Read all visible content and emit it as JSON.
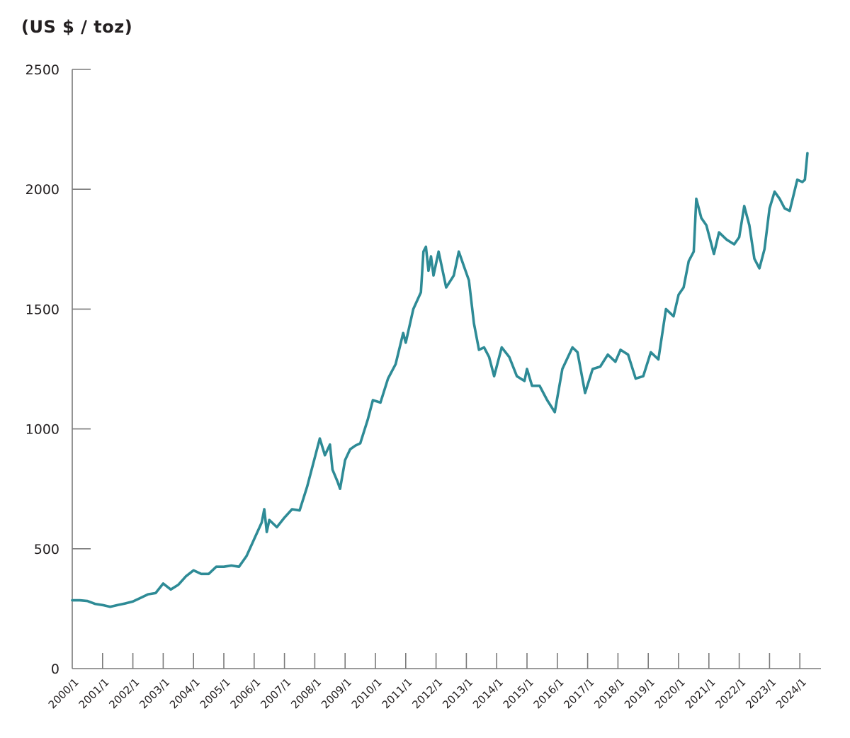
{
  "chart_data": {
    "type": "line",
    "title": "",
    "ylabel": "(US $ / toz)",
    "xlabel": "",
    "ylim": [
      0,
      2500
    ],
    "yticks": [
      0,
      500,
      1000,
      1500,
      2000,
      2500
    ],
    "xticks": [
      "2000/1",
      "2001/1",
      "2002/1",
      "2003/1",
      "2004/1",
      "2005/1",
      "2006/1",
      "2007/1",
      "2008/1",
      "2009/1",
      "2010/1",
      "2011/1",
      "2012/1",
      "2013/1",
      "2014/1",
      "2015/1",
      "2016/1",
      "2017/1",
      "2018/1",
      "2019/1",
      "2020/1",
      "2021/1",
      "2022/1",
      "2023/1",
      "2024/1"
    ],
    "xrange": [
      "2000-01",
      "2024-04"
    ],
    "grid": false,
    "line_color": "#2e8b96",
    "series": [
      {
        "x": [
          "2000-01",
          "2000-04",
          "2000-07",
          "2000-10",
          "2001-01",
          "2001-04",
          "2001-07",
          "2001-10",
          "2002-01",
          "2002-04",
          "2002-07",
          "2002-10",
          "2003-01",
          "2003-04",
          "2003-07",
          "2003-10",
          "2004-01",
          "2004-04",
          "2004-07",
          "2004-10",
          "2005-01",
          "2005-04",
          "2005-07",
          "2005-10",
          "2006-01",
          "2006-04",
          "2006-05",
          "2006-06",
          "2006-07",
          "2006-10",
          "2007-01",
          "2007-04",
          "2007-07",
          "2007-10",
          "2008-01",
          "2008-03",
          "2008-05",
          "2008-07",
          "2008-08",
          "2008-10",
          "2008-11",
          "2009-01",
          "2009-03",
          "2009-05",
          "2009-07",
          "2009-10",
          "2009-12",
          "2010-03",
          "2010-06",
          "2010-09",
          "2010-12",
          "2011-01",
          "2011-04",
          "2011-07",
          "2011-08",
          "2011-09",
          "2011-10",
          "2011-11",
          "2011-12",
          "2012-02",
          "2012-05",
          "2012-08",
          "2012-10",
          "2012-12",
          "2013-02",
          "2013-04",
          "2013-06",
          "2013-08",
          "2013-10",
          "2013-12",
          "2014-03",
          "2014-06",
          "2014-09",
          "2014-12",
          "2015-01",
          "2015-03",
          "2015-06",
          "2015-09",
          "2015-12",
          "2016-03",
          "2016-07",
          "2016-09",
          "2016-12",
          "2017-03",
          "2017-06",
          "2017-09",
          "2017-12",
          "2018-02",
          "2018-05",
          "2018-08",
          "2018-11",
          "2019-02",
          "2019-05",
          "2019-08",
          "2019-11",
          "2020-01",
          "2020-03",
          "2020-05",
          "2020-07",
          "2020-08",
          "2020-10",
          "2020-12",
          "2021-03",
          "2021-05",
          "2021-08",
          "2021-11",
          "2022-01",
          "2022-03",
          "2022-05",
          "2022-07",
          "2022-09",
          "2022-11",
          "2023-01",
          "2023-03",
          "2023-05",
          "2023-07",
          "2023-09",
          "2023-12",
          "2024-02",
          "2024-03",
          "2024-04"
        ],
        "values": [
          285,
          285,
          282,
          270,
          265,
          258,
          265,
          272,
          280,
          295,
          310,
          315,
          355,
          330,
          350,
          385,
          410,
          395,
          395,
          425,
          425,
          430,
          425,
          470,
          540,
          610,
          665,
          570,
          620,
          590,
          630,
          665,
          660,
          760,
          880,
          960,
          890,
          935,
          830,
          780,
          750,
          870,
          915,
          930,
          940,
          1040,
          1120,
          1110,
          1210,
          1270,
          1400,
          1360,
          1500,
          1570,
          1740,
          1760,
          1660,
          1720,
          1640,
          1740,
          1590,
          1640,
          1740,
          1680,
          1620,
          1440,
          1330,
          1340,
          1300,
          1220,
          1340,
          1300,
          1220,
          1200,
          1250,
          1180,
          1180,
          1120,
          1070,
          1250,
          1340,
          1320,
          1150,
          1250,
          1260,
          1310,
          1280,
          1330,
          1310,
          1210,
          1220,
          1320,
          1290,
          1500,
          1470,
          1560,
          1590,
          1700,
          1740,
          1960,
          1880,
          1850,
          1730,
          1820,
          1790,
          1770,
          1800,
          1930,
          1850,
          1710,
          1670,
          1750,
          1920,
          1990,
          1960,
          1920,
          1910,
          2040,
          2030,
          2040,
          2150
        ]
      }
    ]
  }
}
